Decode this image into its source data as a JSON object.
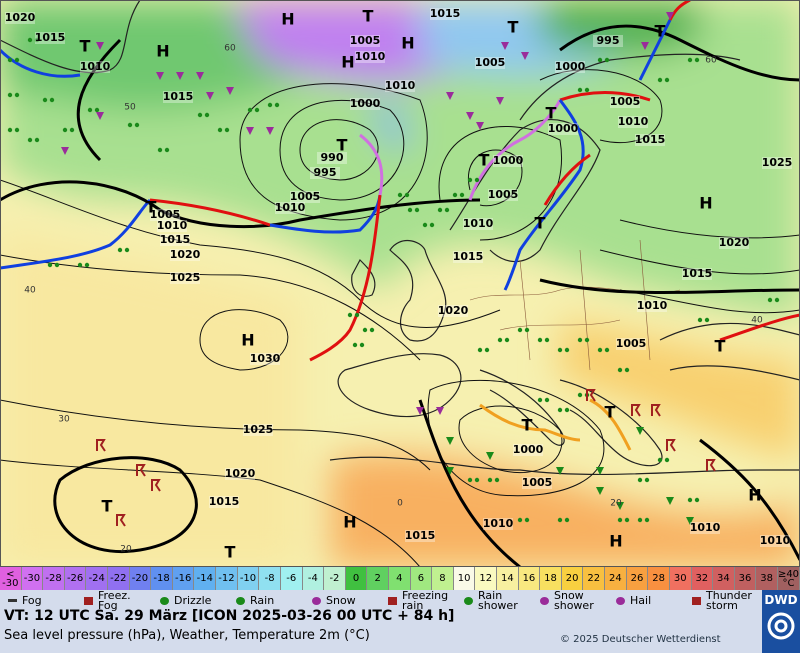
{
  "map": {
    "pressure_labels": [
      "1020",
      "1015",
      "1010",
      "1015",
      "1005",
      "1010",
      "1015",
      "1020",
      "1025",
      "1030",
      "1025",
      "1020",
      "1015",
      "1015",
      "1005",
      "1010",
      "990",
      "995",
      "1000",
      "1010",
      "1005",
      "1010",
      "1015",
      "1005",
      "1000",
      "995",
      "1005",
      "1000",
      "1010",
      "1015",
      "1000",
      "1005",
      "1010",
      "1015",
      "1020",
      "1025",
      "1020",
      "1015",
      "1010",
      "1005",
      "1000",
      "1005",
      "1010",
      "1010",
      "1010"
    ],
    "centers": [
      "H",
      "T",
      "H",
      "H",
      "H",
      "T",
      "T",
      "T",
      "T",
      "T",
      "T",
      "T",
      "T",
      "H",
      "H",
      "T",
      "T",
      "T",
      "T",
      "H",
      "H",
      "H",
      "T"
    ],
    "isotherm_labels": [
      "60",
      "50",
      "40",
      "30",
      "20",
      "60",
      "40",
      "20",
      "0"
    ]
  },
  "scale": {
    "labels": [
      "< -30",
      "-30",
      "-28",
      "-26",
      "-24",
      "-22",
      "-20",
      "-18",
      "-16",
      "-14",
      "-12",
      "-10",
      "-8",
      "-6",
      "-4",
      "-2",
      "0",
      "2",
      "4",
      "6",
      "8",
      "10",
      "12",
      "14",
      "16",
      "18",
      "20",
      "22",
      "24",
      "26",
      "28",
      "30",
      "32",
      "34",
      "36",
      "38",
      "≥40 °C"
    ],
    "colors": [
      "#e060e0",
      "#d070f0",
      "#c070f0",
      "#b070f0",
      "#a070f0",
      "#9070f0",
      "#7080f0",
      "#6090f0",
      "#60a0f0",
      "#60b0f0",
      "#70c0f0",
      "#80d0f0",
      "#90e0f0",
      "#a0f0f0",
      "#b0f0e0",
      "#c0f0d0",
      "#40c040",
      "#60d060",
      "#80e070",
      "#a0e880",
      "#c0f090",
      "#fafae8",
      "#fafac0",
      "#f8f0a0",
      "#f8e880",
      "#f8e060",
      "#f8d040",
      "#f8c040",
      "#f8b040",
      "#f8a040",
      "#f89040",
      "#f07060",
      "#e06060",
      "#d06060",
      "#c06060",
      "#b06060",
      "#a06060"
    ]
  },
  "legend": [
    "Fog",
    "Freez. Fog",
    "Drizzle",
    "Rain",
    "Snow",
    "Freezing rain",
    "Rain shower",
    "Snow shower",
    "Hail",
    "Thunder storm"
  ],
  "footer": {
    "valid_time": "VT: 12 UTC Sa.  29 März [ICON 2025-03-26  00 UTC + 84 h]",
    "description": "Sea level pressure (hPa), Weather, Temperature 2m (°C)",
    "copyright": "© 2025 Deutscher Wetterdienst",
    "logo": "DWD"
  }
}
